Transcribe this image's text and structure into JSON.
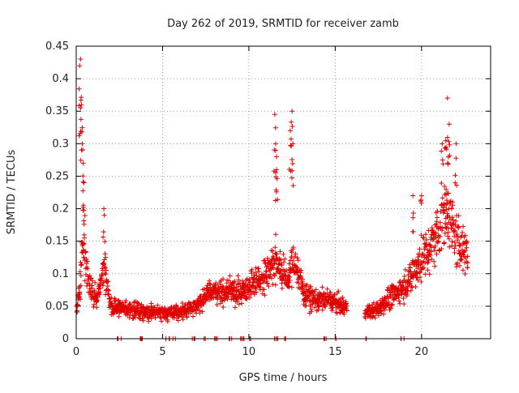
{
  "chart_data": {
    "type": "scatter",
    "title": "Day 262 of 2019, SRMTID for receiver zamb",
    "xlabel": "GPS time / hours",
    "ylabel": "SRMTID / TECUs",
    "xlim": [
      0,
      24
    ],
    "ylim": [
      0,
      0.45
    ],
    "xticks": [
      0,
      5,
      10,
      15,
      20
    ],
    "yticks": [
      0,
      0.05,
      0.1,
      0.15,
      0.2,
      0.25,
      0.3,
      0.35,
      0.4,
      0.45
    ],
    "grid": true,
    "marker": "+",
    "series_color": "#e00000",
    "series": [
      {
        "name": "SRMTID",
        "envelope_hours": [
          0,
          0.2,
          0.35,
          0.5,
          0.8,
          1.2,
          1.6,
          2.0,
          3,
          4,
          5,
          6,
          7,
          7.8,
          8.5,
          9,
          9.5,
          10,
          10.5,
          11,
          11.5,
          11.8,
          12.2,
          12.7,
          13.2,
          13.8,
          14.5,
          15.5,
          16.8,
          17.5,
          18,
          18.5,
          19,
          19.5,
          20,
          20.5,
          21,
          21.5,
          22,
          22.7
        ],
        "envelope_median": [
          0.045,
          0.07,
          0.15,
          0.12,
          0.08,
          0.06,
          0.11,
          0.05,
          0.045,
          0.042,
          0.04,
          0.04,
          0.05,
          0.075,
          0.07,
          0.075,
          0.07,
          0.08,
          0.09,
          0.1,
          0.12,
          0.11,
          0.09,
          0.12,
          0.07,
          0.06,
          0.06,
          0.05,
          0.04,
          0.045,
          0.06,
          0.07,
          0.08,
          0.1,
          0.12,
          0.14,
          0.17,
          0.2,
          0.15,
          0.13
        ],
        "peaks": [
          {
            "x": 0.2,
            "y": 0.42
          },
          {
            "x": 0.25,
            "y": 0.43
          },
          {
            "x": 0.3,
            "y": 0.36
          },
          {
            "x": 0.35,
            "y": 0.3
          },
          {
            "x": 0.4,
            "y": 0.27
          },
          {
            "x": 0.45,
            "y": 0.24
          },
          {
            "x": 1.6,
            "y": 0.2
          },
          {
            "x": 11.5,
            "y": 0.345
          },
          {
            "x": 11.55,
            "y": 0.3
          },
          {
            "x": 11.6,
            "y": 0.28
          },
          {
            "x": 12.4,
            "y": 0.32
          },
          {
            "x": 12.5,
            "y": 0.35
          },
          {
            "x": 12.55,
            "y": 0.3
          },
          {
            "x": 21.5,
            "y": 0.37
          },
          {
            "x": 21.6,
            "y": 0.33
          },
          {
            "x": 21.2,
            "y": 0.3
          },
          {
            "x": 21.4,
            "y": 0.305
          },
          {
            "x": 22.0,
            "y": 0.3
          },
          {
            "x": 20.0,
            "y": 0.22
          },
          {
            "x": 19.5,
            "y": 0.22
          }
        ],
        "zero_clusters_hours": [
          2.5,
          3.8,
          5.3,
          5.7,
          6.8,
          7.5,
          8.1,
          8.9,
          9.6,
          10.1,
          11.6,
          12.2,
          14.4,
          15.1,
          16.8,
          18.9
        ]
      }
    ]
  }
}
